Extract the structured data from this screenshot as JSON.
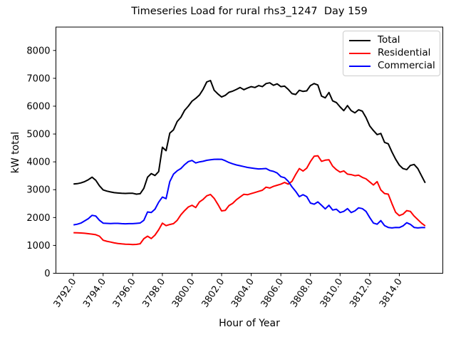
{
  "title": "Timeseries Load for rural rhs3_1247  Day 159",
  "xlabel": "Hour of Year",
  "ylabel": "kW total",
  "legend": [
    {
      "label": "Total",
      "color": "#000000"
    },
    {
      "label": "Residential",
      "color": "#ff0000"
    },
    {
      "label": "Commercial",
      "color": "#0000ff"
    }
  ],
  "chart_data": {
    "type": "line",
    "title": "Timeseries Load for rural rhs3_1247  Day 159",
    "xlabel": "Hour of Year",
    "ylabel": "kW total",
    "grid": false,
    "legend_position": "upper right",
    "xlim": [
      3790.8125,
      3816.9375
    ],
    "ylim": [
      0,
      8840
    ],
    "xticks": [
      3792,
      3794,
      3796,
      3798,
      3800,
      3802,
      3804,
      3806,
      3808,
      3810,
      3812,
      3814
    ],
    "xtick_labels": [
      "3792.0",
      "3794.0",
      "3796.0",
      "3798.0",
      "3800.0",
      "3802.0",
      "3804.0",
      "3806.0",
      "3808.0",
      "3810.0",
      "3812.0",
      "3814.0"
    ],
    "yticks": [
      0,
      1000,
      2000,
      3000,
      4000,
      5000,
      6000,
      7000,
      8000
    ],
    "ytick_labels": [
      "0",
      "1000",
      "2000",
      "3000",
      "4000",
      "5000",
      "6000",
      "7000",
      "8000"
    ],
    "x": [
      3792.0,
      3792.25,
      3792.5,
      3792.75,
      3793.0,
      3793.25,
      3793.5,
      3793.75,
      3794.0,
      3794.25,
      3794.5,
      3794.75,
      3795.0,
      3795.25,
      3795.5,
      3795.75,
      3796.0,
      3796.25,
      3796.5,
      3796.75,
      3797.0,
      3797.25,
      3797.5,
      3797.75,
      3798.0,
      3798.25,
      3798.5,
      3798.75,
      3799.0,
      3799.25,
      3799.5,
      3799.75,
      3800.0,
      3800.25,
      3800.5,
      3800.75,
      3801.0,
      3801.25,
      3801.5,
      3801.75,
      3802.0,
      3802.25,
      3802.5,
      3802.75,
      3803.0,
      3803.25,
      3803.5,
      3803.75,
      3804.0,
      3804.25,
      3804.5,
      3804.75,
      3805.0,
      3805.25,
      3805.5,
      3805.75,
      3806.0,
      3806.25,
      3806.5,
      3806.75,
      3807.0,
      3807.25,
      3807.5,
      3807.75,
      3808.0,
      3808.25,
      3808.5,
      3808.75,
      3809.0,
      3809.25,
      3809.5,
      3809.75,
      3810.0,
      3810.25,
      3810.5,
      3810.75,
      3811.0,
      3811.25,
      3811.5,
      3811.75,
      3812.0,
      3812.25,
      3812.5,
      3812.75,
      3813.0,
      3813.25,
      3813.5,
      3813.75,
      3814.0,
      3814.25,
      3814.5,
      3814.75,
      3815.0,
      3815.25,
      3815.5,
      3815.75
    ],
    "series": [
      {
        "name": "Total",
        "color": "#000000",
        "values": [
          3205,
          3215,
          3245,
          3290,
          3360,
          3450,
          3340,
          3140,
          2990,
          2950,
          2920,
          2895,
          2880,
          2870,
          2865,
          2870,
          2870,
          2840,
          2855,
          3050,
          3450,
          3580,
          3510,
          3650,
          4525,
          4400,
          5030,
          5150,
          5450,
          5600,
          5850,
          6000,
          6180,
          6280,
          6400,
          6600,
          6870,
          6920,
          6570,
          6440,
          6330,
          6390,
          6500,
          6540,
          6600,
          6670,
          6590,
          6650,
          6700,
          6670,
          6740,
          6700,
          6810,
          6840,
          6750,
          6800,
          6700,
          6720,
          6600,
          6450,
          6420,
          6570,
          6530,
          6550,
          6740,
          6810,
          6760,
          6360,
          6300,
          6490,
          6190,
          6130,
          5975,
          5840,
          6020,
          5840,
          5760,
          5870,
          5820,
          5590,
          5290,
          5125,
          4980,
          5020,
          4700,
          4650,
          4355,
          4100,
          3885,
          3758,
          3720,
          3870,
          3908,
          3758,
          3500,
          3245
        ]
      },
      {
        "name": "Residential",
        "color": "#ff0000",
        "values": [
          1455,
          1450,
          1445,
          1435,
          1420,
          1405,
          1385,
          1330,
          1185,
          1150,
          1120,
          1090,
          1070,
          1055,
          1045,
          1038,
          1030,
          1035,
          1060,
          1240,
          1330,
          1245,
          1370,
          1560,
          1798,
          1710,
          1750,
          1780,
          1900,
          2100,
          2250,
          2380,
          2440,
          2360,
          2560,
          2650,
          2780,
          2830,
          2690,
          2475,
          2240,
          2260,
          2430,
          2510,
          2640,
          2740,
          2835,
          2820,
          2860,
          2900,
          2940,
          2980,
          3090,
          3060,
          3120,
          3160,
          3200,
          3260,
          3200,
          3300,
          3545,
          3758,
          3670,
          3775,
          4013,
          4200,
          4220,
          4020,
          4060,
          4075,
          3845,
          3720,
          3630,
          3673,
          3560,
          3540,
          3502,
          3520,
          3445,
          3390,
          3280,
          3170,
          3290,
          2990,
          2863,
          2840,
          2500,
          2190,
          2070,
          2120,
          2250,
          2220,
          2055,
          1926,
          1798,
          1700
        ]
      },
      {
        "name": "Commercial",
        "color": "#0000ff",
        "values": [
          1737,
          1760,
          1800,
          1880,
          1960,
          2080,
          2055,
          1900,
          1798,
          1790,
          1785,
          1790,
          1790,
          1780,
          1775,
          1780,
          1780,
          1790,
          1805,
          1900,
          2200,
          2180,
          2300,
          2550,
          2735,
          2680,
          3290,
          3560,
          3680,
          3760,
          3900,
          4010,
          4050,
          3960,
          4000,
          4020,
          4055,
          4075,
          4090,
          4095,
          4090,
          4040,
          3975,
          3930,
          3890,
          3860,
          3830,
          3800,
          3780,
          3760,
          3745,
          3750,
          3760,
          3690,
          3660,
          3600,
          3470,
          3430,
          3300,
          3100,
          2940,
          2750,
          2820,
          2750,
          2520,
          2480,
          2560,
          2440,
          2310,
          2440,
          2270,
          2300,
          2180,
          2220,
          2320,
          2180,
          2240,
          2350,
          2320,
          2220,
          2000,
          1800,
          1760,
          1890,
          1712,
          1645,
          1628,
          1645,
          1640,
          1700,
          1815,
          1755,
          1645,
          1628,
          1640,
          1640
        ]
      }
    ]
  }
}
